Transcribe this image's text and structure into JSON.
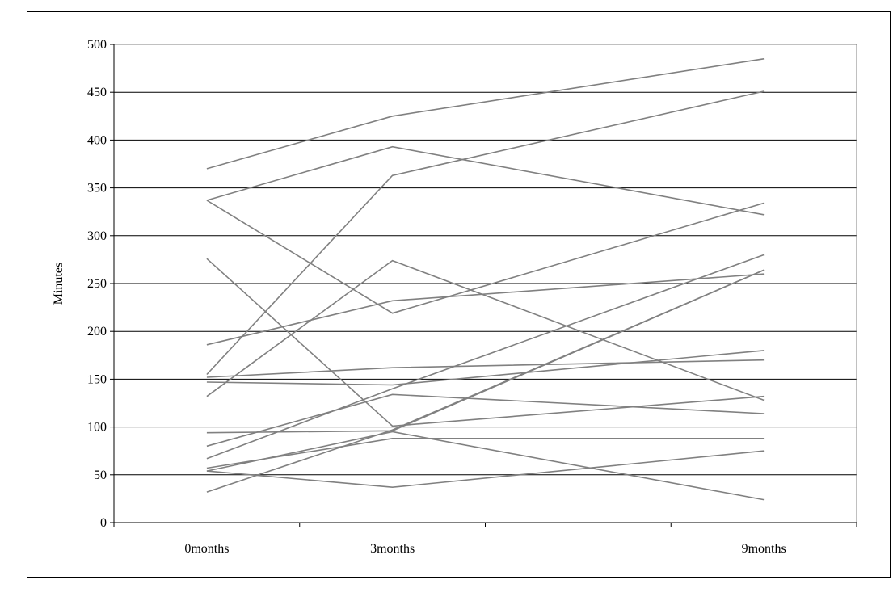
{
  "chart_data": {
    "type": "line",
    "title": "",
    "xlabel": "",
    "ylabel": "Minutes",
    "ylim": [
      0,
      500
    ],
    "y_ticks": [
      "0",
      "50",
      "100",
      "150",
      "200",
      "250",
      "300",
      "350",
      "400",
      "450",
      "500"
    ],
    "x_categories": [
      "0months",
      "3months",
      "",
      "9months"
    ],
    "x": [
      0,
      3,
      9
    ],
    "grid": "horizontal",
    "legend": "none",
    "line_color": "#808080",
    "series": [
      {
        "values": [
          370,
          425,
          485
        ]
      },
      {
        "values": [
          337,
          393,
          322
        ]
      },
      {
        "values": [
          155,
          363,
          451
        ]
      },
      {
        "values": [
          337,
          219,
          334
        ]
      },
      {
        "values": [
          132,
          274,
          128
        ]
      },
      {
        "values": [
          186,
          232,
          260
        ]
      },
      {
        "values": [
          152,
          162,
          170
        ]
      },
      {
        "values": [
          147,
          144,
          180
        ]
      },
      {
        "values": [
          276,
          101,
          132
        ]
      },
      {
        "values": [
          80,
          134,
          114
        ]
      },
      {
        "values": [
          67,
          140,
          280
        ]
      },
      {
        "values": [
          94,
          96,
          264
        ]
      },
      {
        "values": [
          57,
          88,
          88
        ]
      },
      {
        "values": [
          54,
          95,
          24
        ]
      },
      {
        "values": [
          32,
          97,
          264
        ]
      },
      {
        "values": [
          54,
          37,
          75
        ]
      }
    ]
  }
}
